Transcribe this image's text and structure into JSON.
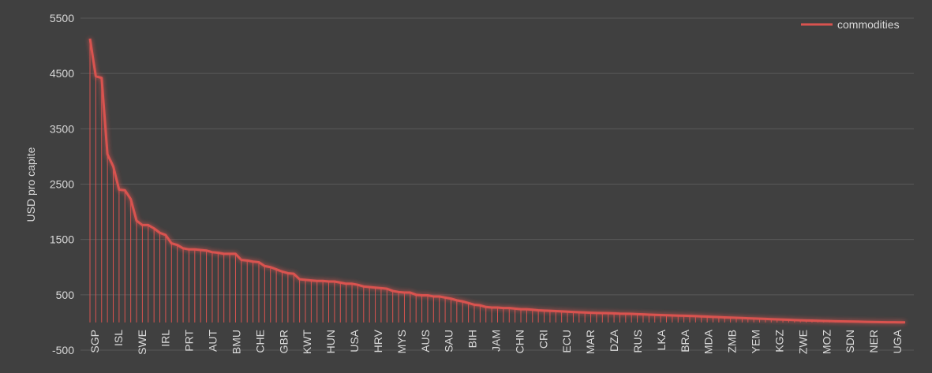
{
  "chart_data": {
    "type": "line",
    "title": "",
    "xlabel": "",
    "ylabel": "USD pro capite",
    "ylim": [
      -500,
      5500
    ],
    "yticks": [
      -500,
      500,
      1500,
      2500,
      3500,
      4500,
      5500
    ],
    "grid": true,
    "legend_position": "top-right",
    "colors": {
      "background": "#404040",
      "series": "#d9534f",
      "grid": "#595959",
      "text": "#d9d9d9"
    },
    "xtick_labels": [
      "SGP",
      "ISL",
      "SWE",
      "IRL",
      "PRT",
      "AUT",
      "BMU",
      "CHE",
      "GBR",
      "KWT",
      "HUN",
      "USA",
      "HRV",
      "MYS",
      "AUS",
      "SAU",
      "BIH",
      "JAM",
      "CHN",
      "CRI",
      "ECU",
      "MAR",
      "DZA",
      "RUS",
      "LKA",
      "BRA",
      "MDA",
      "ZMB",
      "YEM",
      "KGZ",
      "ZWE",
      "MOZ",
      "SDN",
      "NER",
      "UGA"
    ],
    "series": [
      {
        "name": "commodities",
        "values": [
          5130,
          4450,
          4420,
          3040,
          2820,
          2400,
          2390,
          2230,
          1840,
          1760,
          1760,
          1700,
          1620,
          1580,
          1430,
          1400,
          1340,
          1320,
          1320,
          1310,
          1300,
          1270,
          1260,
          1240,
          1240,
          1240,
          1130,
          1120,
          1100,
          1090,
          1020,
          1000,
          960,
          920,
          890,
          880,
          780,
          770,
          760,
          750,
          750,
          740,
          740,
          720,
          700,
          700,
          680,
          650,
          640,
          630,
          620,
          610,
          570,
          550,
          540,
          540,
          500,
          490,
          490,
          470,
          470,
          450,
          430,
          400,
          380,
          350,
          320,
          310,
          280,
          270,
          270,
          260,
          260,
          250,
          240,
          240,
          230,
          220,
          215,
          210,
          205,
          200,
          195,
          190,
          185,
          180,
          175,
          172,
          170,
          168,
          165,
          160,
          158,
          155,
          150,
          146,
          142,
          138,
          134,
          130,
          127,
          124,
          121,
          118,
          115,
          110,
          105,
          100,
          96,
          92,
          88,
          84,
          80,
          76,
          72,
          68,
          64,
          60,
          56,
          52,
          48,
          44,
          40,
          37,
          34,
          31,
          28,
          25,
          22,
          20,
          18,
          16,
          14,
          12,
          10,
          8,
          6,
          5,
          4,
          3,
          2
        ]
      }
    ]
  }
}
